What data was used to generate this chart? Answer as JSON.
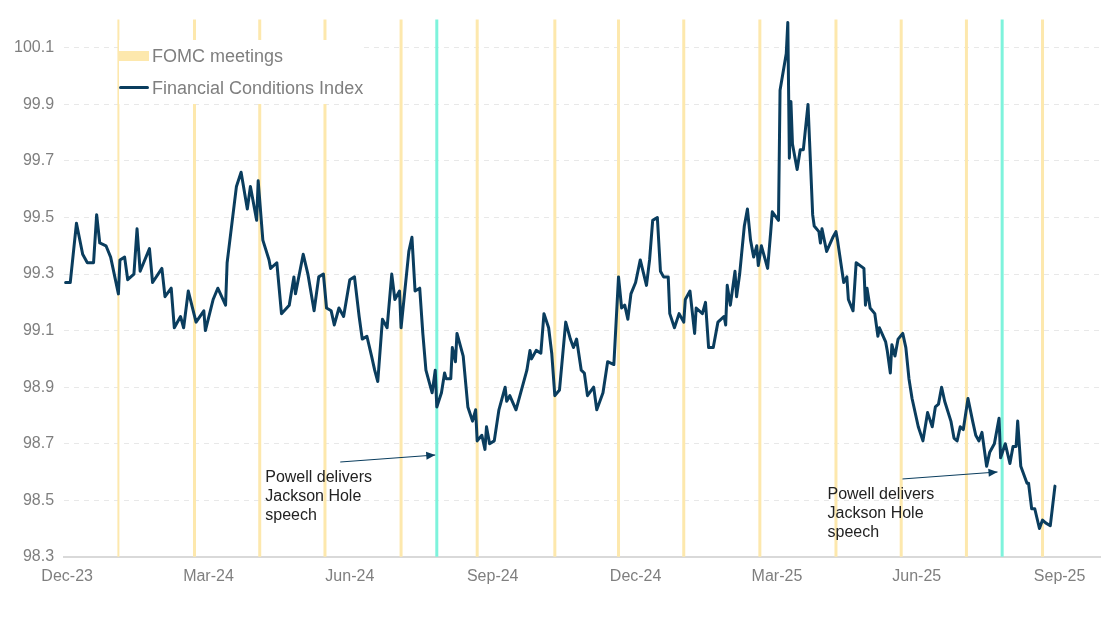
{
  "chart_data": {
    "type": "line",
    "x": [
      "2023-12-28",
      "2023-12-31",
      "2024-01-04",
      "2024-01-08",
      "2024-01-11",
      "2024-01-15",
      "2024-01-17",
      "2024-01-19",
      "2024-01-23",
      "2024-01-26",
      "2024-01-31",
      "2024-02-01",
      "2024-02-04",
      "2024-02-06",
      "2024-02-10",
      "2024-02-12",
      "2024-02-14",
      "2024-02-20",
      "2024-02-22",
      "2024-02-28",
      "2024-03-01",
      "2024-03-05",
      "2024-03-07",
      "2024-03-11",
      "2024-03-13",
      "2024-03-16",
      "2024-03-21",
      "2024-03-26",
      "2024-03-27",
      "2024-04-01",
      "2024-04-04",
      "2024-04-09",
      "2024-04-10",
      "2024-04-16",
      "2024-04-19",
      "2024-04-23",
      "2024-04-25",
      "2024-04-29",
      "2024-04-30",
      "2024-05-03",
      "2024-05-07",
      "2024-05-08",
      "2024-05-12",
      "2024-05-15",
      "2024-05-20",
      "2024-05-23",
      "2024-05-24",
      "2024-05-29",
      "2024-06-01",
      "2024-06-05",
      "2024-06-08",
      "2024-06-11",
      "2024-06-13",
      "2024-06-16",
      "2024-06-18",
      "2024-06-21",
      "2024-06-24",
      "2024-06-28",
      "2024-07-01",
      "2024-07-04",
      "2024-07-06",
      "2024-07-09",
      "2024-07-12",
      "2024-07-14",
      "2024-07-16",
      "2024-07-19",
      "2024-07-22",
      "2024-07-25",
      "2024-07-27",
      "2024-07-30",
      "2024-07-31",
      "2024-08-05",
      "2024-08-07",
      "2024-08-09",
      "2024-08-12",
      "2024-08-14",
      "2024-08-16",
      "2024-08-20",
      "2024-08-22",
      "2024-08-23",
      "2024-08-26",
      "2024-08-28",
      "2024-08-29",
      "2024-09-01",
      "2024-09-02",
      "2024-09-04",
      "2024-09-05",
      "2024-09-09",
      "2024-09-12",
      "2024-09-15",
      "2024-09-17",
      "2024-09-18",
      "2024-09-21",
      "2024-09-23",
      "2024-09-24",
      "2024-09-26",
      "2024-09-29",
      "2024-10-02",
      "2024-10-06",
      "2024-10-07",
      "2024-10-09",
      "2024-10-13",
      "2024-10-16",
      "2024-10-20",
      "2024-10-22",
      "2024-10-23",
      "2024-10-26",
      "2024-10-29",
      "2024-10-31",
      "2024-11-03",
      "2024-11-05",
      "2024-11-07",
      "2024-11-10",
      "2024-11-14",
      "2024-11-17",
      "2024-11-19",
      "2024-11-21",
      "2024-11-24",
      "2024-11-26",
      "2024-11-28",
      "2024-12-02",
      "2024-12-04",
      "2024-12-08",
      "2024-12-11",
      "2024-12-15",
      "2024-12-18",
      "2024-12-20",
      "2024-12-22",
      "2024-12-24",
      "2024-12-26",
      "2024-12-29",
      "2025-01-01",
      "2025-01-05",
      "2025-01-07",
      "2025-01-09",
      "2025-01-12",
      "2025-01-14",
      "2025-01-16",
      "2025-01-19",
      "2025-01-20",
      "2025-01-23",
      "2025-01-26",
      "2025-01-29",
      "2025-01-30",
      "2025-02-02",
      "2025-02-05",
      "2025-02-06",
      "2025-02-10",
      "2025-02-12",
      "2025-02-14",
      "2025-02-17",
      "2025-02-20",
      "2025-02-24",
      "2025-02-25",
      "2025-02-26",
      "2025-02-28",
      "2025-03-03",
      "2025-03-04",
      "2025-03-06",
      "2025-03-09",
      "2025-03-11",
      "2025-03-13",
      "2025-03-15",
      "2025-03-17",
      "2025-03-18",
      "2025-03-20",
      "2025-03-24",
      "2025-03-26",
      "2025-03-27",
      "2025-03-31",
      "2025-04-01",
      "2025-04-05",
      "2025-04-06",
      "2025-04-07",
      "2025-04-08",
      "2025-04-09",
      "2025-04-12",
      "2025-04-14",
      "2025-04-16",
      "2025-04-19",
      "2025-04-22",
      "2025-04-23",
      "2025-04-26",
      "2025-04-27",
      "2025-04-28",
      "2025-05-01",
      "2025-05-05",
      "2025-05-07",
      "2025-05-08",
      "2025-05-12",
      "2025-05-14",
      "2025-05-15",
      "2025-05-18",
      "2025-05-20",
      "2025-05-25",
      "2025-05-26",
      "2025-05-27",
      "2025-05-29",
      "2025-06-01",
      "2025-06-03",
      "2025-06-04",
      "2025-06-08",
      "2025-06-09",
      "2025-06-11",
      "2025-06-12",
      "2025-06-14",
      "2025-06-16",
      "2025-06-19",
      "2025-06-21",
      "2025-06-23",
      "2025-06-25",
      "2025-06-29",
      "2025-07-02",
      "2025-07-05",
      "2025-07-08",
      "2025-07-10",
      "2025-07-12",
      "2025-07-14",
      "2025-07-16",
      "2025-07-20",
      "2025-07-22",
      "2025-07-24",
      "2025-07-26",
      "2025-07-28",
      "2025-07-31",
      "2025-08-03",
      "2025-08-05",
      "2025-08-07",
      "2025-08-09",
      "2025-08-12",
      "2025-08-14",
      "2025-08-17",
      "2025-08-20",
      "2025-08-21",
      "2025-08-24",
      "2025-08-27",
      "2025-08-29",
      "2025-08-31",
      "2025-09-01",
      "2025-09-03",
      "2025-09-07",
      "2025-09-08",
      "2025-09-10",
      "2025-09-12",
      "2025-09-15",
      "2025-09-17",
      "2025-09-19",
      "2025-09-22",
      "2025-09-25"
    ],
    "series": [
      {
        "name": "Financial Conditions Index",
        "color": "#0a3d5e",
        "values": [
          99.27,
          99.27,
          99.48,
          99.37,
          99.34,
          99.34,
          99.51,
          99.41,
          99.4,
          99.36,
          99.23,
          99.35,
          99.36,
          99.28,
          99.3,
          99.46,
          99.31,
          99.39,
          99.27,
          99.32,
          99.22,
          99.25,
          99.11,
          99.15,
          99.11,
          99.24,
          99.13,
          99.17,
          99.1,
          99.21,
          99.25,
          99.19,
          99.34,
          99.61,
          99.66,
          99.53,
          99.61,
          99.49,
          99.63,
          99.42,
          99.35,
          99.32,
          99.34,
          99.16,
          99.19,
          99.29,
          99.23,
          99.37,
          99.3,
          99.17,
          99.29,
          99.3,
          99.18,
          99.17,
          99.12,
          99.18,
          99.15,
          99.28,
          99.29,
          99.15,
          99.07,
          99.08,
          99.01,
          98.96,
          98.92,
          99.14,
          99.11,
          99.3,
          99.21,
          99.24,
          99.11,
          99.38,
          99.43,
          99.24,
          99.25,
          99.09,
          98.96,
          98.88,
          98.96,
          98.83,
          98.88,
          98.95,
          98.93,
          98.93,
          99.04,
          98.99,
          99.09,
          99.01,
          98.83,
          98.78,
          98.82,
          98.71,
          98.73,
          98.68,
          98.76,
          98.7,
          98.71,
          98.82,
          98.9,
          98.85,
          98.87,
          98.82,
          98.88,
          98.96,
          99.03,
          99.0,
          99.03,
          99.02,
          99.16,
          99.11,
          99.02,
          98.87,
          98.89,
          99.13,
          99.07,
          99.04,
          99.07,
          98.96,
          98.95,
          98.87,
          98.9,
          98.82,
          98.88,
          98.99,
          98.98,
          99.29,
          99.18,
          99.19,
          99.14,
          99.23,
          99.27,
          99.35,
          99.26,
          99.35,
          99.49,
          99.5,
          99.31,
          99.29,
          99.29,
          99.16,
          99.11,
          99.16,
          99.13,
          99.21,
          99.24,
          99.09,
          99.18,
          99.16,
          99.2,
          99.04,
          99.04,
          99.13,
          99.15,
          99.12,
          99.26,
          99.19,
          99.31,
          99.22,
          99.3,
          99.47,
          99.53,
          99.42,
          99.36,
          99.4,
          99.33,
          99.4,
          99.32,
          99.45,
          99.52,
          99.49,
          99.95,
          100.08,
          100.19,
          99.71,
          99.91,
          99.76,
          99.67,
          99.74,
          99.74,
          99.9,
          99.51,
          99.47,
          99.45,
          99.41,
          99.46,
          99.38,
          99.43,
          99.45,
          99.42,
          99.27,
          99.29,
          99.21,
          99.17,
          99.34,
          99.32,
          99.19,
          99.25,
          99.18,
          99.16,
          99.08,
          99.11,
          99.06,
          99.03,
          98.95,
          99.05,
          99.01,
          99.07,
          99.09,
          99.04,
          98.93,
          98.86,
          98.76,
          98.71,
          98.81,
          98.76,
          98.83,
          98.84,
          98.9,
          98.85,
          98.78,
          98.72,
          98.71,
          98.76,
          98.75,
          98.86,
          98.78,
          98.73,
          98.71,
          98.74,
          98.62,
          98.67,
          98.7,
          98.79,
          98.65,
          98.7,
          98.63,
          98.69,
          98.69,
          98.78,
          98.62,
          98.56,
          98.56,
          98.47,
          98.47,
          98.4,
          98.43,
          98.42,
          98.41,
          98.55
        ]
      }
    ],
    "xlim": [
      "2023-12-27",
      "2025-10-24"
    ],
    "xticks": [
      {
        "value": "2023-12-29",
        "label": "Dec-23"
      },
      {
        "value": "2024-03-29",
        "label": "Mar-24"
      },
      {
        "value": "2024-06-28",
        "label": "Jun-24"
      },
      {
        "value": "2024-09-28",
        "label": "Sep-24"
      },
      {
        "value": "2024-12-29",
        "label": "Dec-24"
      },
      {
        "value": "2025-03-30",
        "label": "Mar-25"
      },
      {
        "value": "2025-06-28",
        "label": "Jun-25"
      },
      {
        "value": "2025-09-28",
        "label": "Sep-25"
      }
    ],
    "ylim": [
      98.3,
      100.2
    ],
    "yticks": [
      98.3,
      98.5,
      98.7,
      98.9,
      99.1,
      99.3,
      99.5,
      99.7,
      99.9,
      100.1
    ],
    "grid": "y",
    "legend": "top left",
    "marker": "none",
    "line_style": "solid",
    "ref_lines": [
      {
        "axis": "x",
        "value": "2024-01-31",
        "label": "FOMC meetings",
        "color": "#fde8ad"
      },
      {
        "axis": "x",
        "value": "2024-03-20",
        "color": "#fde8ad"
      },
      {
        "axis": "x",
        "value": "2024-05-01",
        "color": "#fde8ad"
      },
      {
        "axis": "x",
        "value": "2024-06-12",
        "color": "#fde8ad"
      },
      {
        "axis": "x",
        "value": "2024-07-31",
        "color": "#fde8ad"
      },
      {
        "axis": "x",
        "value": "2024-08-23",
        "color": "#7ef3dc"
      },
      {
        "axis": "x",
        "value": "2024-09-18",
        "color": "#fde8ad"
      },
      {
        "axis": "x",
        "value": "2024-11-07",
        "color": "#fde8ad"
      },
      {
        "axis": "x",
        "value": "2024-12-18",
        "color": "#fde8ad"
      },
      {
        "axis": "x",
        "value": "2025-01-29",
        "color": "#fde8ad"
      },
      {
        "axis": "x",
        "value": "2025-03-19",
        "color": "#fde8ad"
      },
      {
        "axis": "x",
        "value": "2025-05-07",
        "color": "#fde8ad"
      },
      {
        "axis": "x",
        "value": "2025-06-18",
        "color": "#fde8ad"
      },
      {
        "axis": "x",
        "value": "2025-07-30",
        "color": "#fde8ad"
      },
      {
        "axis": "x",
        "value": "2025-08-22",
        "color": "#7ef3dc"
      },
      {
        "axis": "x",
        "value": "2025-09-17",
        "color": "#fde8ad"
      }
    ],
    "annotations": [
      {
        "text": "Powell delivers\nJackson Hole\nspeech",
        "x": "2024-08-22",
        "y": 98.66
      },
      {
        "text": "Powell delivers\nJackson Hole\nspeech",
        "x": "2025-08-19",
        "y": 98.6
      }
    ]
  }
}
